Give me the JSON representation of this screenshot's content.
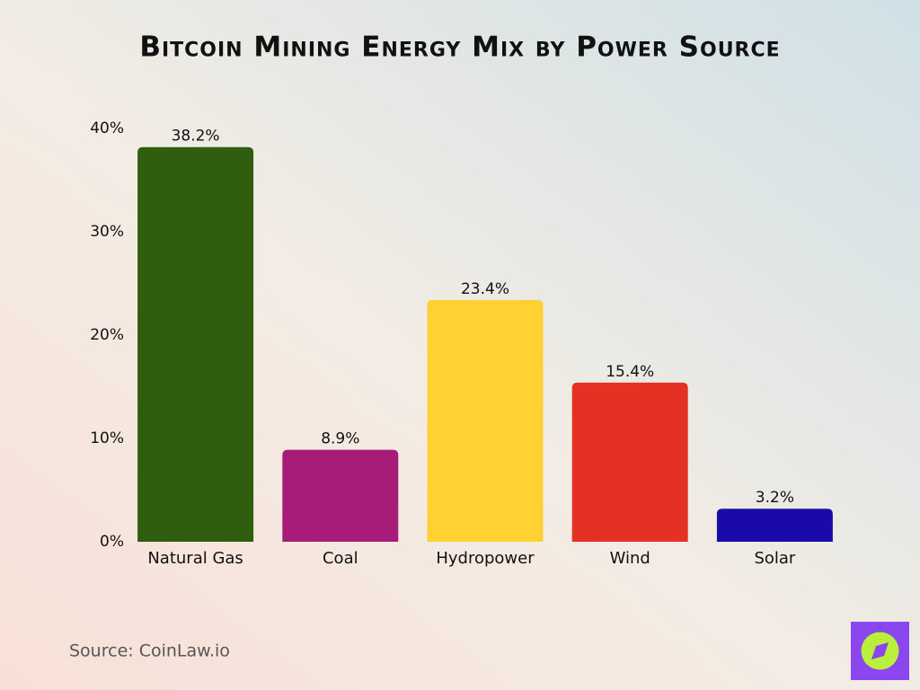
{
  "chart_data": {
    "type": "bar",
    "title": "Bitcoin Mining Energy Mix by Power Source",
    "categories": [
      "Natural Gas",
      "Coal",
      "Hydropower",
      "Wind",
      "Solar"
    ],
    "values": [
      38.2,
      8.9,
      23.4,
      15.4,
      3.2
    ],
    "value_labels": [
      "38.2%",
      "8.9%",
      "23.4%",
      "15.4%",
      "3.2%"
    ],
    "colors": [
      "#2e5e0e",
      "#a61c78",
      "#ffd133",
      "#e53024",
      "#1a0aa8"
    ],
    "ylim": [
      0,
      40
    ],
    "yticks": [
      {
        "value": 0,
        "label": "0%"
      },
      {
        "value": 10,
        "label": "10%"
      },
      {
        "value": 20,
        "label": "20%"
      },
      {
        "value": 30,
        "label": "30%"
      },
      {
        "value": 40,
        "label": "40%"
      }
    ],
    "grid": false,
    "source": "Source: CoinLaw.io"
  }
}
